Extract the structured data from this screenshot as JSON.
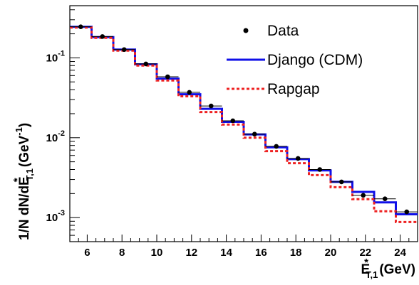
{
  "chart_data": {
    "type": "line",
    "xlabel": "E*T,1 (GeV)",
    "ylabel": "1/N dN/dE*T,1 (GeV-1)",
    "xlim": [
      5,
      25
    ],
    "ylim": [
      0.0005,
      0.45
    ],
    "y_scale": "log",
    "grid": false,
    "legend_position": "top-right",
    "x_ticks": [
      6,
      8,
      10,
      12,
      14,
      16,
      18,
      20,
      22,
      24
    ],
    "y_ticks": [
      {
        "value": 0.001,
        "base": "10",
        "exp": "-3"
      },
      {
        "value": 0.01,
        "base": "10",
        "exp": "-2"
      },
      {
        "value": 0.1,
        "base": "10",
        "exp": "-1"
      }
    ],
    "bin_edges": [
      5,
      6.25,
      7.5,
      8.75,
      10,
      11.25,
      12.5,
      13.75,
      15,
      16.25,
      17.5,
      18.75,
      20,
      21.25,
      22.5,
      23.75,
      25
    ],
    "series": [
      {
        "name": "Data",
        "style": "markers",
        "color": "#000000",
        "x": [
          5.625,
          6.875,
          8.125,
          9.375,
          10.625,
          11.875,
          13.125,
          14.375,
          15.625,
          16.875,
          18.125,
          19.375,
          20.625,
          21.875,
          23.125,
          24.375
        ],
        "values": [
          0.245,
          0.185,
          0.127,
          0.084,
          0.058,
          0.037,
          0.025,
          0.0163,
          0.0111,
          0.0078,
          0.0055,
          0.004,
          0.0028,
          0.0019,
          0.00172,
          0.00118
        ]
      },
      {
        "name": "Django (CDM)",
        "style": "step",
        "color": "#1010e8",
        "values": [
          0.245,
          0.182,
          0.127,
          0.083,
          0.055,
          0.035,
          0.023,
          0.0158,
          0.011,
          0.0076,
          0.0054,
          0.0039,
          0.0028,
          0.0021,
          0.00155,
          0.0011
        ]
      },
      {
        "name": "Rapgap",
        "style": "dashed-step",
        "color": "#ee2222",
        "values": [
          0.24,
          0.178,
          0.123,
          0.08,
          0.052,
          0.033,
          0.021,
          0.0146,
          0.01,
          0.0068,
          0.0048,
          0.0034,
          0.0024,
          0.0017,
          0.0012,
          0.00088
        ]
      }
    ]
  }
}
